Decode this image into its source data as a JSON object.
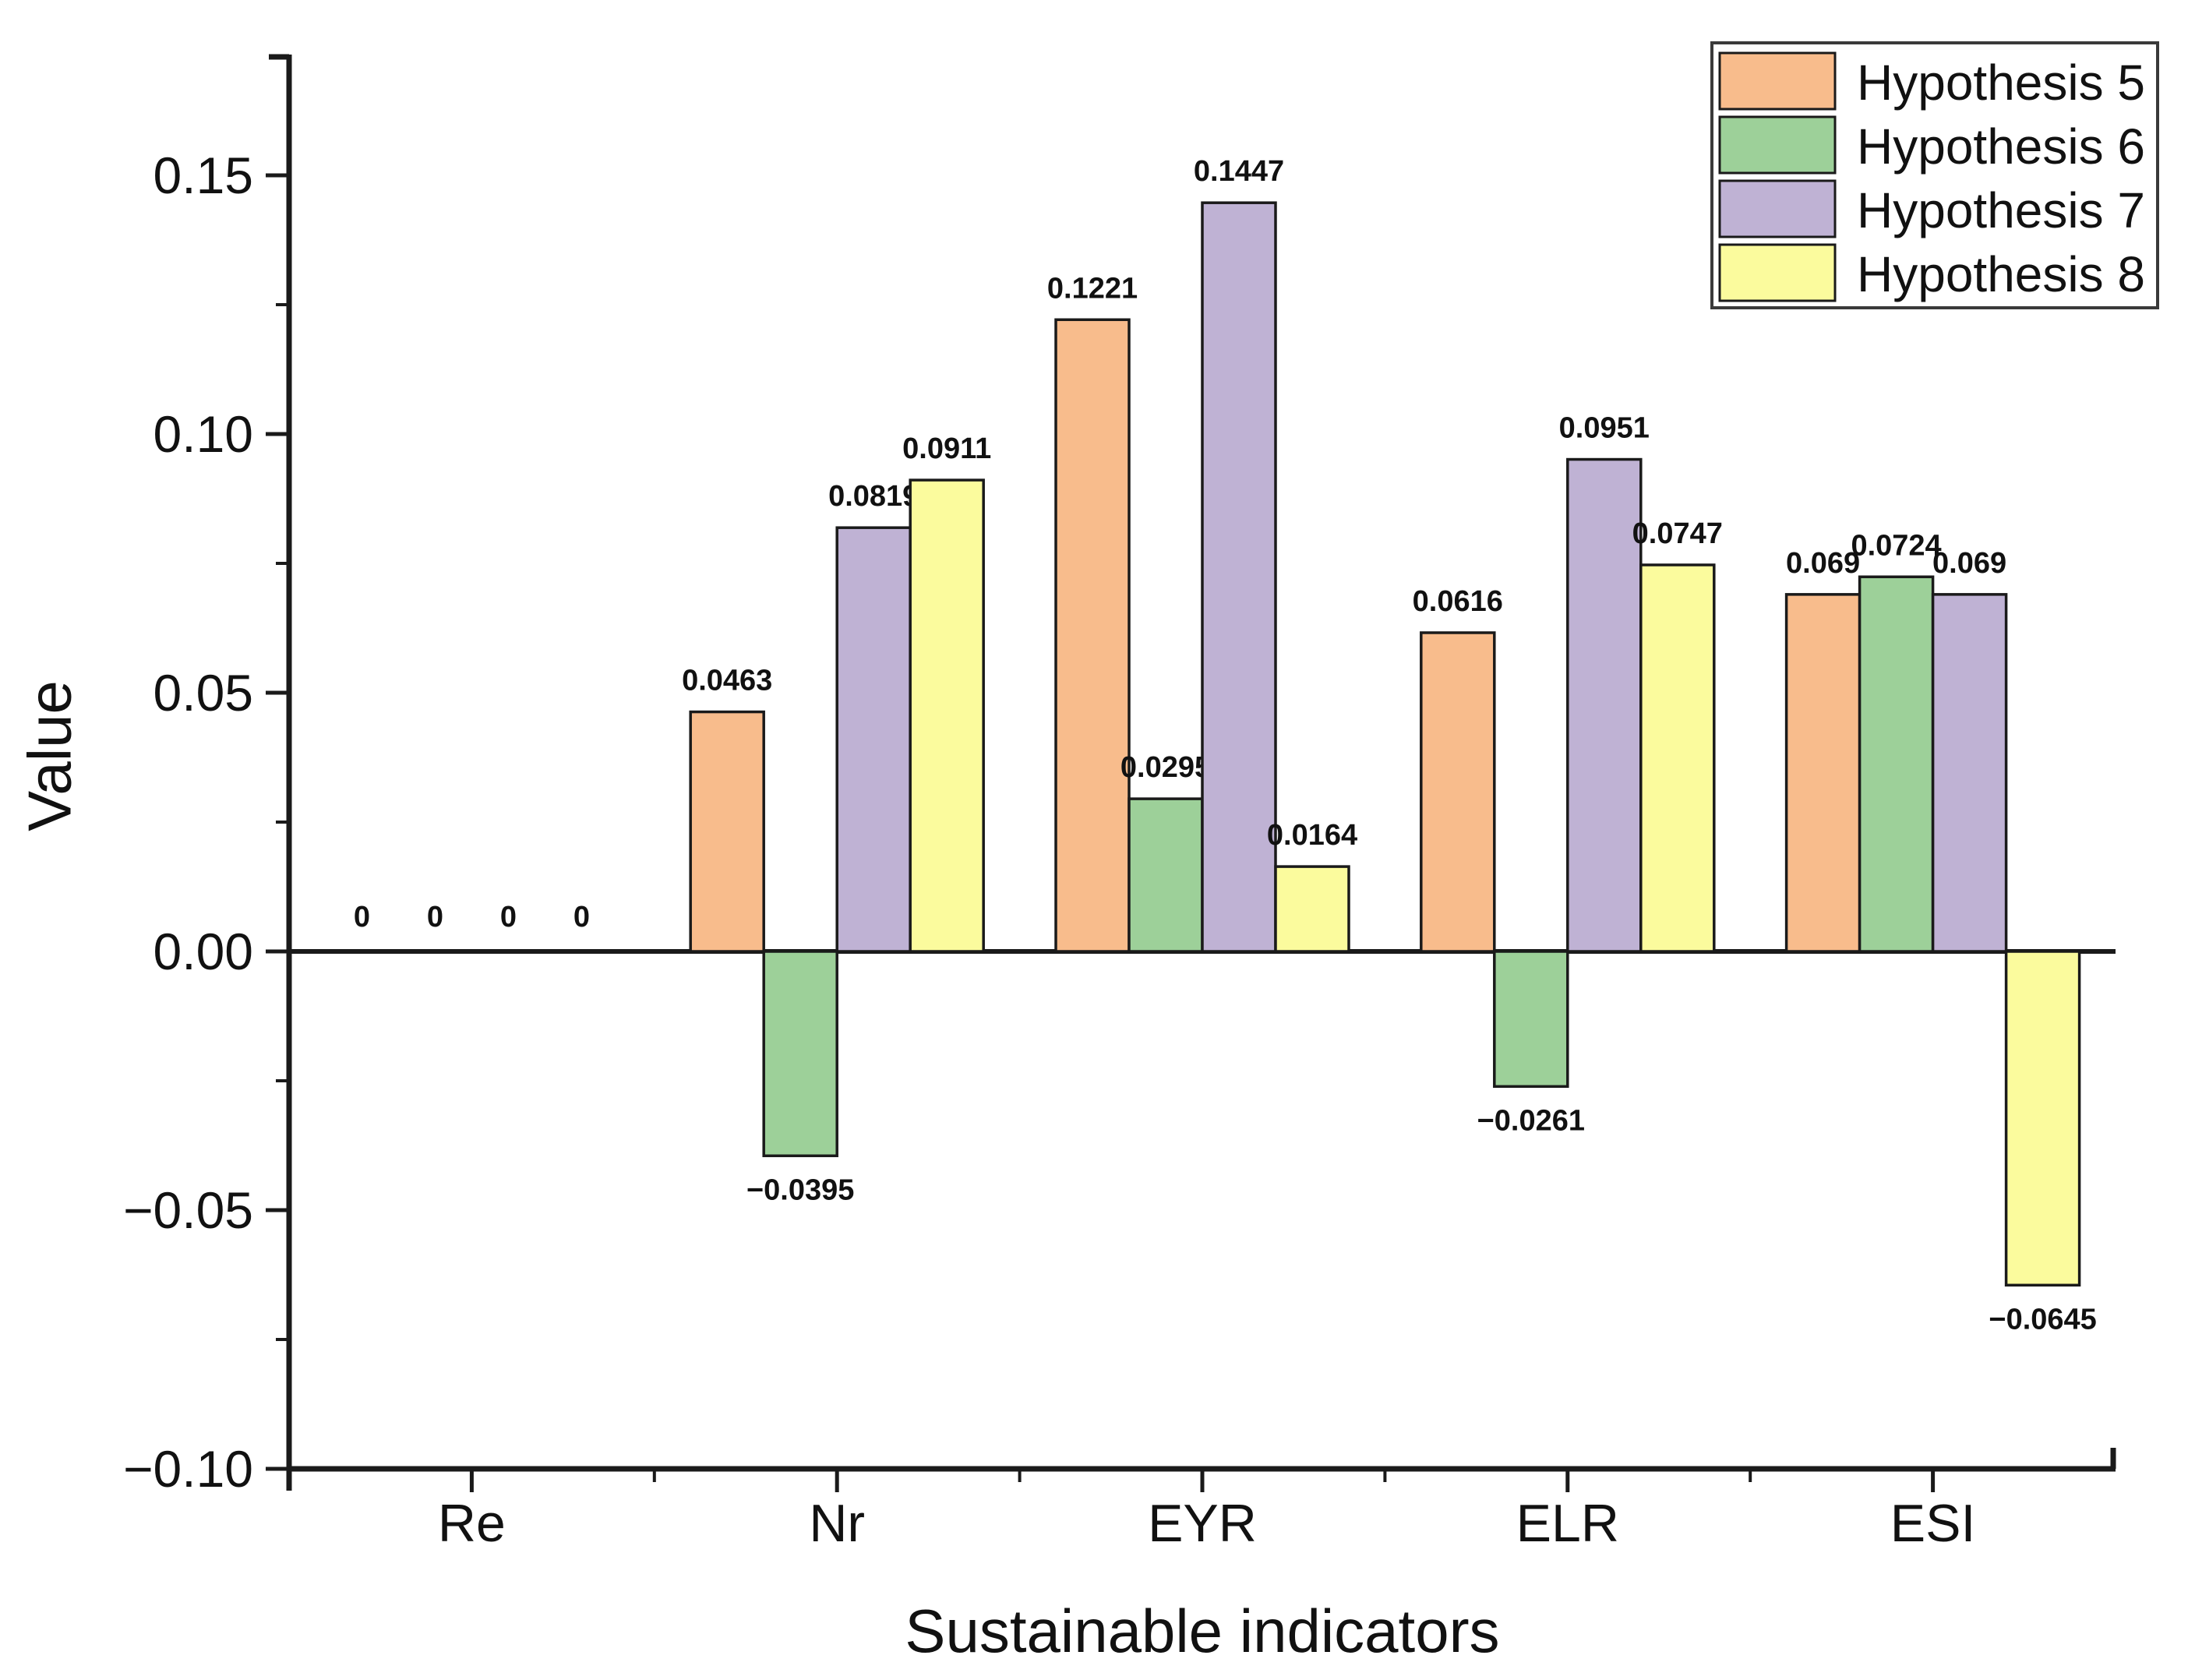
{
  "figure": {
    "background_color": "#ffffff",
    "axis_color": "#1a1a1a"
  },
  "chart_data": {
    "type": "bar",
    "title": "",
    "xlabel": "Sustainable indicators",
    "ylabel": "Value",
    "categories": [
      "Re",
      "Nr",
      "EYR",
      "ELR",
      "ESI"
    ],
    "series": [
      {
        "name": "Hypothesis 5",
        "color": "#F8BC8C",
        "values": [
          0,
          0.0463,
          0.1221,
          0.0616,
          0.069
        ],
        "labels": [
          "0",
          "0.0463",
          "0.1221",
          "0.0616",
          "0.069"
        ]
      },
      {
        "name": "Hypothesis 6",
        "color": "#9DD099",
        "values": [
          0,
          -0.0395,
          0.0295,
          -0.0261,
          0.0724
        ],
        "labels": [
          "0",
          "−0.0395",
          "0.0295",
          "−0.0261",
          "0.0724"
        ]
      },
      {
        "name": "Hypothesis 7",
        "color": "#BFB2D4",
        "values": [
          0,
          0.0819,
          0.1447,
          0.0951,
          0.069
        ],
        "labels": [
          "0",
          "0.0819",
          "0.1447",
          "0.0951",
          "0.069"
        ]
      },
      {
        "name": "Hypothesis 8",
        "color": "#FBFB9D",
        "values": [
          0,
          0.0911,
          0.0164,
          0.0747,
          -0.0645
        ],
        "labels": [
          "0",
          "0.0911",
          "0.0164",
          "0.0747",
          "−0.0645"
        ]
      }
    ],
    "bar_edge_color": "#1a1a1a",
    "y_ticks": [
      {
        "label": "0.15",
        "value": 0.15
      },
      {
        "label": "0.10",
        "value": 0.1
      },
      {
        "label": "0.05",
        "value": 0.05
      },
      {
        "label": "0.00",
        "value": 0.0
      },
      {
        "label": "−0.05",
        "value": -0.05
      },
      {
        "label": "−0.10",
        "value": -0.1
      }
    ],
    "y_minor_tick_values": [
      0.125,
      0.075,
      0.025,
      -0.025,
      -0.075
    ],
    "ylim": [
      -0.1,
      0.174
    ],
    "grid": false,
    "legend_position": "top-right",
    "legend_entries": [
      "Hypothesis 5",
      "Hypothesis 6",
      "Hypothesis 7",
      "Hypothesis 8"
    ]
  }
}
